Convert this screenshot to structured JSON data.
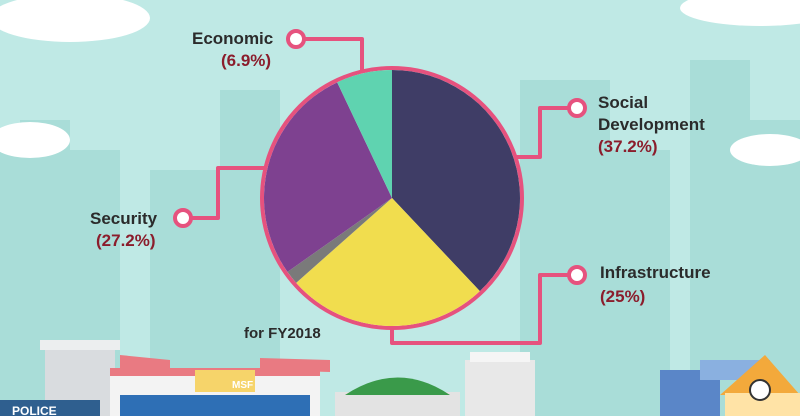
{
  "chart_data": {
    "type": "pie",
    "slices": [
      {
        "key": "social",
        "label": "Social Development",
        "value": 37.2,
        "value_label": "(37.2%)",
        "color": "#3f3d66"
      },
      {
        "key": "infra",
        "label": "Infrastructure",
        "value": 25,
        "value_label": "(25%)",
        "color": "#f1dd4e"
      },
      {
        "key": "other",
        "label": "",
        "value": 1.7,
        "value_label": "",
        "color": "#7a7a7a"
      },
      {
        "key": "security",
        "label": "Security",
        "value": 27.2,
        "value_label": "(27.2%)",
        "color": "#7e4190"
      },
      {
        "key": "economic",
        "label": "Economic",
        "value": 6.9,
        "value_label": "(6.9%)",
        "color": "#5fd3b0"
      }
    ],
    "annotation": "for FY2018",
    "accent_color": "#e6527e"
  },
  "building_sign": "MSF",
  "police_sign": "POLICE"
}
